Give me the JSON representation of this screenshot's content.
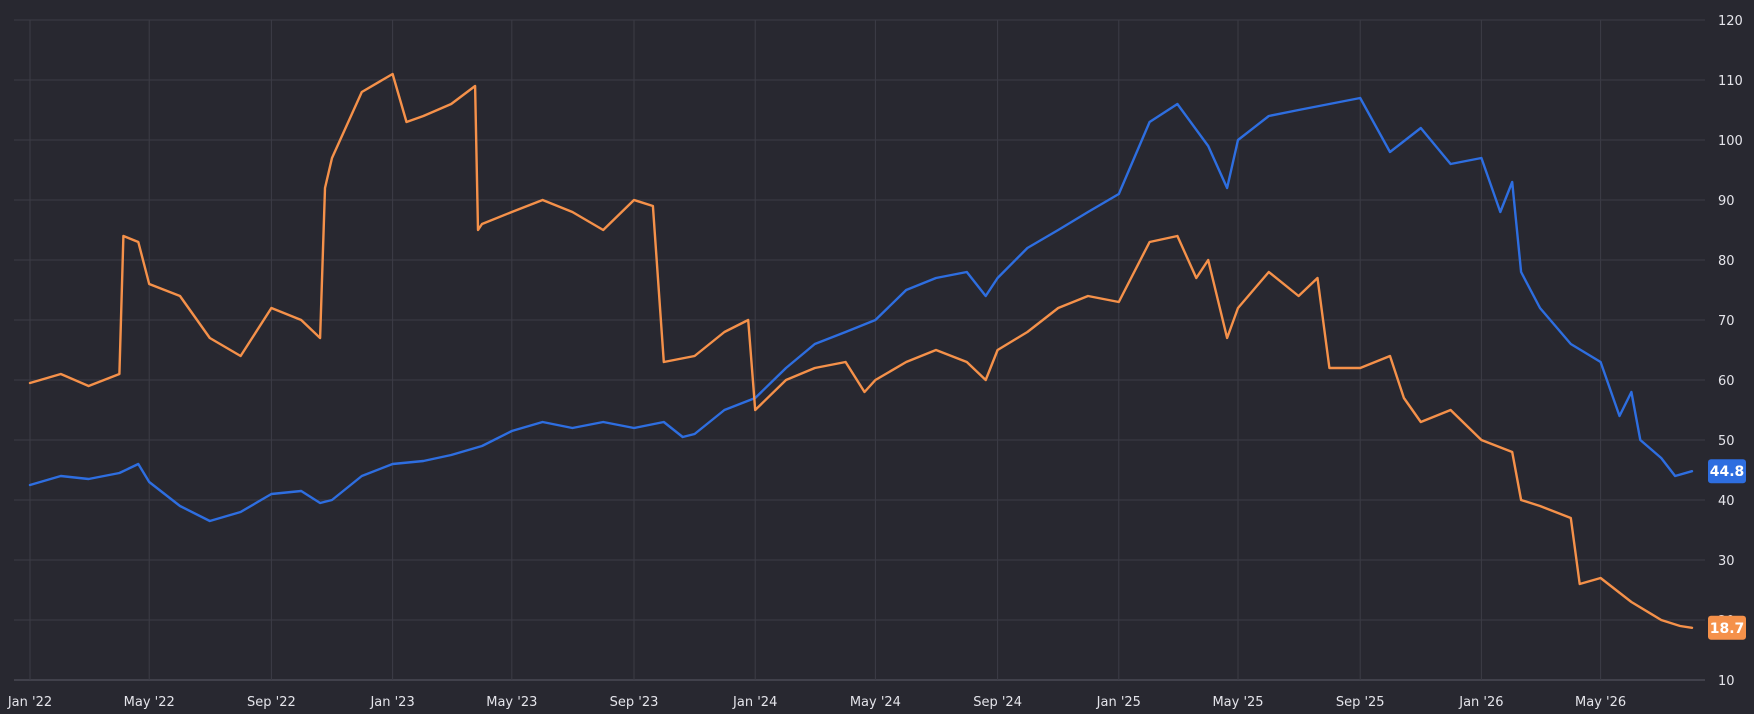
{
  "chart_data": {
    "type": "line",
    "title": "",
    "xlabel": "",
    "ylabel": "",
    "x_range": [
      "2022-01",
      "2026-08"
    ],
    "ylim": [
      10,
      120
    ],
    "y_ticks": [
      10,
      20,
      30,
      40,
      50,
      60,
      70,
      80,
      90,
      100,
      110,
      120
    ],
    "x_ticks": [
      {
        "label": "Jan '22",
        "date": "2022-01"
      },
      {
        "label": "May '22",
        "date": "2022-05"
      },
      {
        "label": "Sep '22",
        "date": "2022-09"
      },
      {
        "label": "Jan '23",
        "date": "2023-01"
      },
      {
        "label": "May '23",
        "date": "2023-05"
      },
      {
        "label": "Sep '23",
        "date": "2023-09"
      },
      {
        "label": "Jan '24",
        "date": "2024-01"
      },
      {
        "label": "May '24",
        "date": "2024-05"
      },
      {
        "label": "Sep '24",
        "date": "2024-09"
      },
      {
        "label": "Jan '25",
        "date": "2025-01"
      },
      {
        "label": "May '25",
        "date": "2025-05"
      },
      {
        "label": "Sep '25",
        "date": "2025-09"
      },
      {
        "label": "Jan '26",
        "date": "2026-01"
      },
      {
        "label": "May '26",
        "date": "2026-05"
      }
    ],
    "grid": true,
    "y_axis_position": "right",
    "series": [
      {
        "color": "#2e6ee0",
        "last_value_label": "44.8",
        "points": [
          [
            "2022-01-01",
            42.5
          ],
          [
            "2022-02-01",
            44
          ],
          [
            "2022-03-01",
            43.5
          ],
          [
            "2022-04-01",
            44.5
          ],
          [
            "2022-04-20",
            46
          ],
          [
            "2022-05-01",
            43
          ],
          [
            "2022-06-01",
            39
          ],
          [
            "2022-07-01",
            36.5
          ],
          [
            "2022-08-01",
            38
          ],
          [
            "2022-09-01",
            41
          ],
          [
            "2022-10-01",
            41.5
          ],
          [
            "2022-10-20",
            39.5
          ],
          [
            "2022-11-01",
            40
          ],
          [
            "2022-12-01",
            44
          ],
          [
            "2023-01-01",
            46
          ],
          [
            "2023-02-01",
            46.5
          ],
          [
            "2023-03-01",
            47.5
          ],
          [
            "2023-04-01",
            49
          ],
          [
            "2023-05-01",
            51.5
          ],
          [
            "2023-06-01",
            53
          ],
          [
            "2023-07-01",
            52
          ],
          [
            "2023-08-01",
            53
          ],
          [
            "2023-09-01",
            52
          ],
          [
            "2023-10-01",
            53
          ],
          [
            "2023-10-20",
            50.5
          ],
          [
            "2023-11-01",
            51
          ],
          [
            "2023-12-01",
            55
          ],
          [
            "2024-01-01",
            57
          ],
          [
            "2024-02-01",
            62
          ],
          [
            "2024-03-01",
            66
          ],
          [
            "2024-04-01",
            68
          ],
          [
            "2024-05-01",
            70
          ],
          [
            "2024-06-01",
            75
          ],
          [
            "2024-07-01",
            77
          ],
          [
            "2024-08-01",
            78
          ],
          [
            "2024-08-20",
            74
          ],
          [
            "2024-09-01",
            77
          ],
          [
            "2024-10-01",
            82
          ],
          [
            "2024-11-01",
            85
          ],
          [
            "2024-12-01",
            88
          ],
          [
            "2025-01-01",
            91
          ],
          [
            "2025-02-01",
            103
          ],
          [
            "2025-03-01",
            106
          ],
          [
            "2025-04-01",
            99
          ],
          [
            "2025-04-20",
            92
          ],
          [
            "2025-05-01",
            100
          ],
          [
            "2025-06-01",
            104
          ],
          [
            "2025-07-01",
            105
          ],
          [
            "2025-08-01",
            106
          ],
          [
            "2025-09-01",
            107
          ],
          [
            "2025-10-01",
            98
          ],
          [
            "2025-11-01",
            102
          ],
          [
            "2025-12-01",
            96
          ],
          [
            "2026-01-01",
            97
          ],
          [
            "2026-01-20",
            88
          ],
          [
            "2026-02-01",
            93
          ],
          [
            "2026-02-10",
            78
          ],
          [
            "2026-03-01",
            72
          ],
          [
            "2026-04-01",
            66
          ],
          [
            "2026-05-01",
            63
          ],
          [
            "2026-05-20",
            54
          ],
          [
            "2026-06-01",
            58
          ],
          [
            "2026-06-10",
            50
          ],
          [
            "2026-07-01",
            47
          ],
          [
            "2026-07-15",
            44
          ],
          [
            "2026-08-01",
            44.8
          ]
        ]
      },
      {
        "color": "#f5914a",
        "last_value_label": "18.7",
        "points": [
          [
            "2022-01-01",
            59.5
          ],
          [
            "2022-02-01",
            61
          ],
          [
            "2022-03-01",
            59
          ],
          [
            "2022-04-01",
            61
          ],
          [
            "2022-04-05",
            84
          ],
          [
            "2022-04-20",
            83
          ],
          [
            "2022-05-01",
            76
          ],
          [
            "2022-06-01",
            74
          ],
          [
            "2022-07-01",
            67
          ],
          [
            "2022-08-01",
            64
          ],
          [
            "2022-09-01",
            72
          ],
          [
            "2022-10-01",
            70
          ],
          [
            "2022-10-20",
            67
          ],
          [
            "2022-10-25",
            92
          ],
          [
            "2022-11-01",
            97
          ],
          [
            "2022-12-01",
            108
          ],
          [
            "2023-01-01",
            111
          ],
          [
            "2023-01-15",
            103
          ],
          [
            "2023-02-01",
            104
          ],
          [
            "2023-03-01",
            106
          ],
          [
            "2023-03-25",
            109
          ],
          [
            "2023-03-28",
            85
          ],
          [
            "2023-04-01",
            86
          ],
          [
            "2023-05-01",
            88
          ],
          [
            "2023-06-01",
            90
          ],
          [
            "2023-07-01",
            88
          ],
          [
            "2023-08-01",
            85
          ],
          [
            "2023-09-01",
            90
          ],
          [
            "2023-09-20",
            89
          ],
          [
            "2023-10-01",
            63
          ],
          [
            "2023-11-01",
            64
          ],
          [
            "2023-12-01",
            68
          ],
          [
            "2023-12-25",
            70
          ],
          [
            "2024-01-01",
            55
          ],
          [
            "2024-02-01",
            60
          ],
          [
            "2024-03-01",
            62
          ],
          [
            "2024-04-01",
            63
          ],
          [
            "2024-04-20",
            58
          ],
          [
            "2024-05-01",
            60
          ],
          [
            "2024-06-01",
            63
          ],
          [
            "2024-07-01",
            65
          ],
          [
            "2024-08-01",
            63
          ],
          [
            "2024-08-20",
            60
          ],
          [
            "2024-09-01",
            65
          ],
          [
            "2024-10-01",
            68
          ],
          [
            "2024-11-01",
            72
          ],
          [
            "2024-12-01",
            74
          ],
          [
            "2025-01-01",
            73
          ],
          [
            "2025-02-01",
            83
          ],
          [
            "2025-03-01",
            84
          ],
          [
            "2025-03-20",
            77
          ],
          [
            "2025-04-01",
            80
          ],
          [
            "2025-04-20",
            67
          ],
          [
            "2025-05-01",
            72
          ],
          [
            "2025-06-01",
            78
          ],
          [
            "2025-07-01",
            74
          ],
          [
            "2025-07-20",
            77
          ],
          [
            "2025-08-01",
            62
          ],
          [
            "2025-09-01",
            62
          ],
          [
            "2025-10-01",
            64
          ],
          [
            "2025-10-15",
            57
          ],
          [
            "2025-11-01",
            53
          ],
          [
            "2025-12-01",
            55
          ],
          [
            "2026-01-01",
            50
          ],
          [
            "2026-02-01",
            48
          ],
          [
            "2026-02-10",
            40
          ],
          [
            "2026-03-01",
            39
          ],
          [
            "2026-04-01",
            37
          ],
          [
            "2026-04-10",
            26
          ],
          [
            "2026-05-01",
            27
          ],
          [
            "2026-06-01",
            23
          ],
          [
            "2026-07-01",
            20
          ],
          [
            "2026-07-20",
            19
          ],
          [
            "2026-08-01",
            18.7
          ]
        ]
      }
    ]
  }
}
